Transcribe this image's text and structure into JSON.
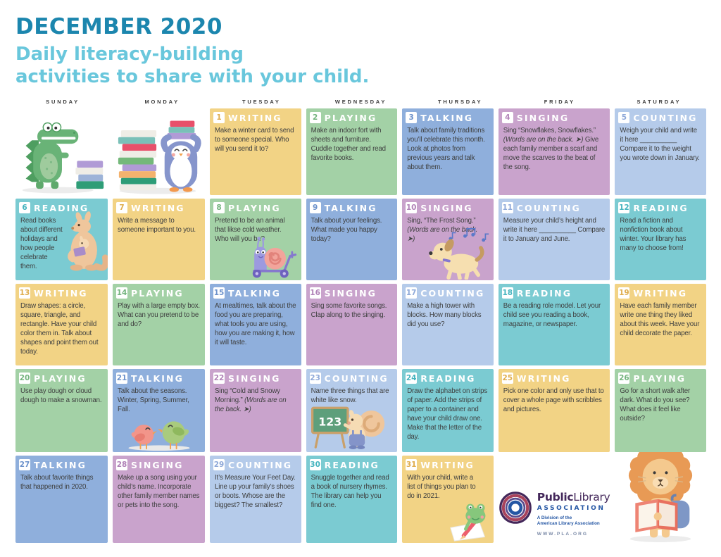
{
  "header": {
    "title": "DECEMBER 2020",
    "subtitle_line1": "Daily literacy-building",
    "subtitle_line2": "activities to share with your child."
  },
  "colors": {
    "title": "#1C86AE",
    "subtitle": "#69C7DC"
  },
  "weekdays": [
    "SUNDAY",
    "MONDAY",
    "TUESDAY",
    "WEDNESDAY",
    "THURSDAY",
    "FRIDAY",
    "SATURDAY"
  ],
  "activity_colors": {
    "WRITING": {
      "bg": "#F2D385",
      "num": "#DFAE4F"
    },
    "PLAYING": {
      "bg": "#A3D1A6",
      "num": "#74B47E"
    },
    "TALKING": {
      "bg": "#8FAFDC",
      "num": "#6E93CC"
    },
    "SINGING": {
      "bg": "#C9A3CC",
      "num": "#B183B8"
    },
    "COUNTING": {
      "bg": "#B5CBEA",
      "num": "#8FA9D9"
    },
    "READING": {
      "bg": "#7BCBD2",
      "num": "#45B4BF"
    }
  },
  "days": [
    {
      "num": "1",
      "col": 3,
      "row": 1,
      "type": "WRITING",
      "segments": [
        {
          "text": "Make a winter card to send to someone special. Who will you send it to?",
          "italic": false
        }
      ]
    },
    {
      "num": "2",
      "col": 4,
      "row": 1,
      "type": "PLAYING",
      "segments": [
        {
          "text": "Make an indoor fort with sheets and furniture. Cuddle together and read favorite books.",
          "italic": false
        }
      ]
    },
    {
      "num": "3",
      "col": 5,
      "row": 1,
      "type": "TALKING",
      "segments": [
        {
          "text": "Talk about family traditions you’ll celebrate this month. Look at photos from previous years and talk about them.",
          "italic": false
        }
      ]
    },
    {
      "num": "4",
      "col": 6,
      "row": 1,
      "type": "SINGING",
      "segments": [
        {
          "text": "Sing “Snowflakes, Snowflakes.” ",
          "italic": false
        },
        {
          "text": "(Words are on the back. ➤)",
          "italic": true
        },
        {
          "text": " Give each family member a scarf and move the scarves to the beat of the song.",
          "italic": false
        }
      ]
    },
    {
      "num": "5",
      "col": 7,
      "row": 1,
      "type": "COUNTING",
      "segments": [
        {
          "text": "Weigh your child and write it here __________ Compare it to the weight you wrote down in January.",
          "italic": false
        }
      ]
    },
    {
      "num": "6",
      "col": 1,
      "row": 2,
      "type": "READING",
      "illustration": "kangaroo-reading",
      "segments": [
        {
          "text": "Read books about different holidays and how people celebrate them.",
          "italic": false
        }
      ]
    },
    {
      "num": "7",
      "col": 2,
      "row": 2,
      "type": "WRITING",
      "segments": [
        {
          "text": "Write a message to someone important to you.",
          "italic": false
        }
      ]
    },
    {
      "num": "8",
      "col": 3,
      "row": 2,
      "type": "PLAYING",
      "illustration": "snail-scooter",
      "segments": [
        {
          "text": "Pretend to be an animal that likse cold weather. Who will you be?",
          "italic": false
        }
      ]
    },
    {
      "num": "9",
      "col": 4,
      "row": 2,
      "type": "TALKING",
      "segments": [
        {
          "text": "Talk about your feelings. What made you happy today?",
          "italic": false
        }
      ]
    },
    {
      "num": "10",
      "col": 5,
      "row": 2,
      "type": "SINGING",
      "illustration": "dog-walking",
      "segments": [
        {
          "text": "Sing, “The Frost Song.” ",
          "italic": false
        },
        {
          "text": "(Words are on the back. ➤)",
          "italic": true
        }
      ]
    },
    {
      "num": "11",
      "col": 6,
      "row": 2,
      "type": "COUNTING",
      "segments": [
        {
          "text": "Measure your child’s height and write it here __________ Compare it to January and June.",
          "italic": false
        }
      ]
    },
    {
      "num": "12",
      "col": 7,
      "row": 2,
      "type": "READING",
      "segments": [
        {
          "text": "Read a fiction and nonfiction book about winter. Your library has many to choose from!",
          "italic": false
        }
      ]
    },
    {
      "num": "13",
      "col": 1,
      "row": 3,
      "type": "WRITING",
      "segments": [
        {
          "text": "Draw shapes: a circle, square, triangle, and rectangle. Have your child color them in. Talk about shapes and point them out today.",
          "italic": false
        }
      ]
    },
    {
      "num": "14",
      "col": 2,
      "row": 3,
      "type": "PLAYING",
      "segments": [
        {
          "text": "Play with a large empty box. What can you pretend to be and do?",
          "italic": false
        }
      ]
    },
    {
      "num": "15",
      "col": 3,
      "row": 3,
      "type": "TALKING",
      "segments": [
        {
          "text": "At mealtimes, talk about the food you are preparing, what tools you are using, how you are making it, how it will taste.",
          "italic": false
        }
      ]
    },
    {
      "num": "16",
      "col": 4,
      "row": 3,
      "type": "SINGING",
      "segments": [
        {
          "text": "Sing some favorite songs. Clap along to the singing.",
          "italic": false
        }
      ]
    },
    {
      "num": "17",
      "col": 5,
      "row": 3,
      "type": "COUNTING",
      "segments": [
        {
          "text": "Make a high tower with blocks. How many blocks did you use?",
          "italic": false
        }
      ]
    },
    {
      "num": "18",
      "col": 6,
      "row": 3,
      "type": "READING",
      "segments": [
        {
          "text": "Be a reading role model. Let your child see you reading a book, magazine, or newspaper.",
          "italic": false
        }
      ]
    },
    {
      "num": "19",
      "col": 7,
      "row": 3,
      "type": "WRITING",
      "segments": [
        {
          "text": "Have each family member write one thing they liked about this week. Have your child decorate the paper.",
          "italic": false
        }
      ]
    },
    {
      "num": "20",
      "col": 1,
      "row": 4,
      "type": "PLAYING",
      "segments": [
        {
          "text": "Use play dough or cloud dough to make a snowman.",
          "italic": false
        }
      ]
    },
    {
      "num": "21",
      "col": 2,
      "row": 4,
      "type": "TALKING",
      "illustration": "birds-talking",
      "segments": [
        {
          "text": "Talk about the seasons. Winter, Spring, Summer, Fall.",
          "italic": false
        }
      ]
    },
    {
      "num": "22",
      "col": 3,
      "row": 4,
      "type": "SINGING",
      "segments": [
        {
          "text": "Sing “Cold and Snowy Morning.” ",
          "italic": false
        },
        {
          "text": "(Words are on the back. ➤)",
          "italic": true
        }
      ]
    },
    {
      "num": "23",
      "col": 4,
      "row": 4,
      "type": "COUNTING",
      "illustration": "squirrel-chalkboard",
      "segments": [
        {
          "text": "Name three things that are white like snow.",
          "italic": false
        }
      ]
    },
    {
      "num": "24",
      "col": 5,
      "row": 4,
      "type": "READING",
      "segments": [
        {
          "text": "Draw the alphabet on strips of paper. Add the strips of paper to a container and have your child draw one. Make that the letter of the day.",
          "italic": false
        }
      ]
    },
    {
      "num": "25",
      "col": 6,
      "row": 4,
      "type": "WRITING",
      "segments": [
        {
          "text": "Pick one color and only use that to cover a whole page with scribbles and pictures.",
          "italic": false
        }
      ]
    },
    {
      "num": "26",
      "col": 7,
      "row": 4,
      "type": "PLAYING",
      "segments": [
        {
          "text": "Go for a short walk after dark. What do you see? What does it feel like outside?",
          "italic": false
        }
      ]
    },
    {
      "num": "27",
      "col": 1,
      "row": 5,
      "type": "TALKING",
      "segments": [
        {
          "text": "Talk about favorite things that happened in 2020.",
          "italic": false
        }
      ]
    },
    {
      "num": "28",
      "col": 2,
      "row": 5,
      "type": "SINGING",
      "segments": [
        {
          "text": "Make up a song using your child’s name. Incorporate other family member names or pets into the song.",
          "italic": false
        }
      ]
    },
    {
      "num": "29",
      "col": 3,
      "row": 5,
      "type": "COUNTING",
      "segments": [
        {
          "text": "It’s Measure Your Feet Day. Line up your family’s shoes or boots. Whose are the biggest? The smallest?",
          "italic": false
        }
      ]
    },
    {
      "num": "30",
      "col": 4,
      "row": 5,
      "type": "READING",
      "segments": [
        {
          "text": "Snuggle together and read a book of nursery rhymes. The library can help you find one.",
          "italic": false
        }
      ]
    },
    {
      "num": "31",
      "col": 5,
      "row": 5,
      "type": "WRITING",
      "illustration": "frog-writing",
      "segments": [
        {
          "text": "With your child, write a list of things you plan to do in 2021.",
          "italic": false
        }
      ]
    }
  ],
  "decor": {
    "chalkboard_text": "123"
  },
  "footer_logo": {
    "name_bold": "Public",
    "name_light": "Library",
    "association": "ASSOCIATION",
    "division_line1": "A Division of the",
    "division_line2": "American Library Association",
    "url": "WWW.PLA.ORG"
  }
}
